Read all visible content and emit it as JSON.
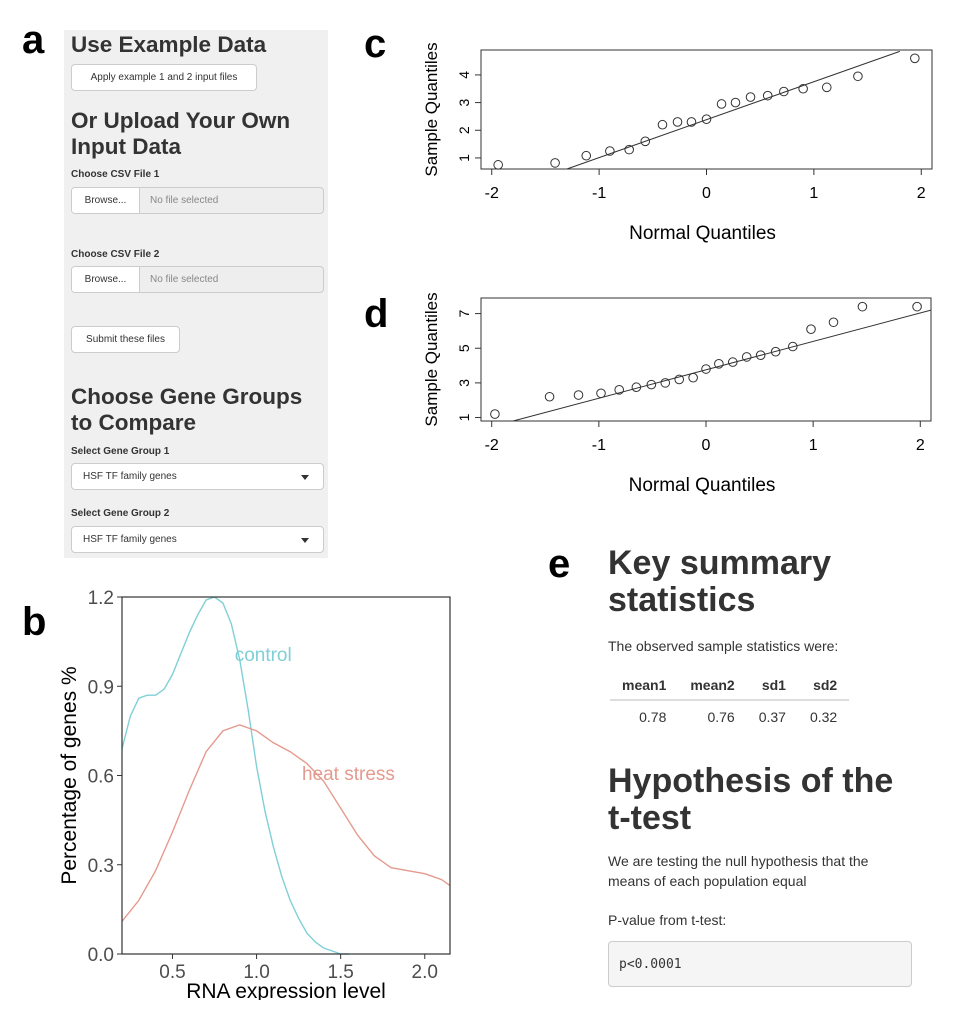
{
  "panel_letters": {
    "a": "a",
    "b": "b",
    "c": "c",
    "d": "d",
    "e": "e"
  },
  "sidebar": {
    "example_heading": "Use Example Data",
    "example_button": "Apply example 1 and 2 input files",
    "upload_heading": "Or Upload Your Own Input Data",
    "file1_label": "Choose CSV File 1",
    "file1_browse": "Browse...",
    "file1_status": "No file selected",
    "file2_label": "Choose CSV File 2",
    "file2_browse": "Browse...",
    "file2_status": "No file selected",
    "submit_button": "Submit these files",
    "groups_heading": "Choose Gene Groups to Compare",
    "group1_label": "Select Gene Group 1",
    "group1_value": "HSF TF family genes",
    "group2_label": "Select Gene Group 2",
    "group2_value": "HSF TF family genes"
  },
  "summary": {
    "heading": "Key summary statistics",
    "intro": "The observed sample statistics were:",
    "columns": [
      "mean1",
      "mean2",
      "sd1",
      "sd2"
    ],
    "values": [
      "0.78",
      "0.76",
      "0.37",
      "0.32"
    ],
    "hypothesis_heading": "Hypothesis of the t-test",
    "hypothesis_text": "We are testing the null hypothesis that the means of each population equal",
    "pvalue_label": "P-value from t-test:",
    "pvalue": "p<0.0001"
  },
  "chart_data": [
    {
      "id": "b",
      "type": "line",
      "xlabel": "RNA expression level",
      "ylabel": "Percentage of genes %",
      "xlim": [
        0.2,
        2.15
      ],
      "ylim": [
        0,
        1.2
      ],
      "xticks": [
        "0.5",
        "1.0",
        "1.5",
        "2.0"
      ],
      "yticks": [
        "0.0",
        "0.3",
        "0.6",
        "0.9",
        "1.2"
      ],
      "grid": false,
      "series": [
        {
          "name": "control",
          "color": "#7fd0d6",
          "x": [
            0.2,
            0.25,
            0.3,
            0.35,
            0.4,
            0.45,
            0.5,
            0.55,
            0.6,
            0.65,
            0.7,
            0.75,
            0.8,
            0.85,
            0.9,
            0.95,
            1.0,
            1.05,
            1.1,
            1.15,
            1.2,
            1.25,
            1.3,
            1.35,
            1.4,
            1.45,
            1.5,
            1.55
          ],
          "y": [
            0.69,
            0.8,
            0.86,
            0.87,
            0.87,
            0.89,
            0.94,
            1.01,
            1.08,
            1.14,
            1.19,
            1.2,
            1.18,
            1.11,
            0.99,
            0.82,
            0.63,
            0.48,
            0.36,
            0.26,
            0.18,
            0.12,
            0.07,
            0.04,
            0.02,
            0.01,
            0.0,
            0.0
          ]
        },
        {
          "name": "heat stress",
          "color": "#e59a8e",
          "x": [
            0.2,
            0.3,
            0.4,
            0.5,
            0.6,
            0.7,
            0.8,
            0.9,
            1.0,
            1.1,
            1.2,
            1.3,
            1.4,
            1.5,
            1.6,
            1.7,
            1.8,
            1.9,
            2.0,
            2.1,
            2.15
          ],
          "y": [
            0.11,
            0.18,
            0.28,
            0.41,
            0.55,
            0.68,
            0.75,
            0.77,
            0.75,
            0.71,
            0.68,
            0.64,
            0.58,
            0.49,
            0.4,
            0.33,
            0.29,
            0.28,
            0.27,
            0.25,
            0.23
          ]
        }
      ]
    },
    {
      "id": "c",
      "type": "scatter",
      "xlabel": "Normal Quantiles",
      "ylabel": "Sample Quantiles",
      "xlim": [
        -2.1,
        2.1
      ],
      "ylim": [
        0.6,
        4.9
      ],
      "xticks": [
        "-2",
        "-1",
        "0",
        "1",
        "2"
      ],
      "yticks": [
        "1",
        "2",
        "3",
        "4"
      ],
      "grid": false,
      "x": [
        -1.94,
        -1.41,
        -1.12,
        -0.9,
        -0.72,
        -0.57,
        -0.41,
        -0.27,
        -0.14,
        0.0,
        0.14,
        0.27,
        0.41,
        0.57,
        0.72,
        0.9,
        1.12,
        1.41,
        1.94
      ],
      "y": [
        0.75,
        0.82,
        1.08,
        1.25,
        1.3,
        1.6,
        2.2,
        2.3,
        2.3,
        2.4,
        2.95,
        3.0,
        3.2,
        3.25,
        3.4,
        3.5,
        3.55,
        3.95,
        4.6
      ],
      "reference_line": {
        "x": [
          -1.3,
          1.8
        ],
        "y": [
          0.6,
          4.85
        ]
      }
    },
    {
      "id": "d",
      "type": "scatter",
      "xlabel": "Normal Quantiles",
      "ylabel": "Sample Quantiles",
      "xlim": [
        -2.1,
        2.1
      ],
      "ylim": [
        0.8,
        7.9
      ],
      "xticks": [
        "-2",
        "-1",
        "0",
        "1",
        "2"
      ],
      "yticks": [
        "1",
        "3",
        "5",
        "7"
      ],
      "grid": false,
      "x": [
        -1.97,
        -1.46,
        -1.19,
        -0.98,
        -0.81,
        -0.65,
        -0.51,
        -0.38,
        -0.25,
        -0.12,
        0.0,
        0.12,
        0.25,
        0.38,
        0.51,
        0.65,
        0.81,
        0.98,
        1.19,
        1.46,
        1.97
      ],
      "y": [
        1.2,
        2.2,
        2.3,
        2.4,
        2.6,
        2.75,
        2.9,
        3.0,
        3.2,
        3.3,
        3.8,
        4.1,
        4.2,
        4.5,
        4.6,
        4.8,
        5.1,
        6.1,
        6.5,
        7.4,
        7.4
      ],
      "reference_line": {
        "x": [
          -1.8,
          2.1
        ],
        "y": [
          0.8,
          7.2
        ]
      }
    }
  ]
}
